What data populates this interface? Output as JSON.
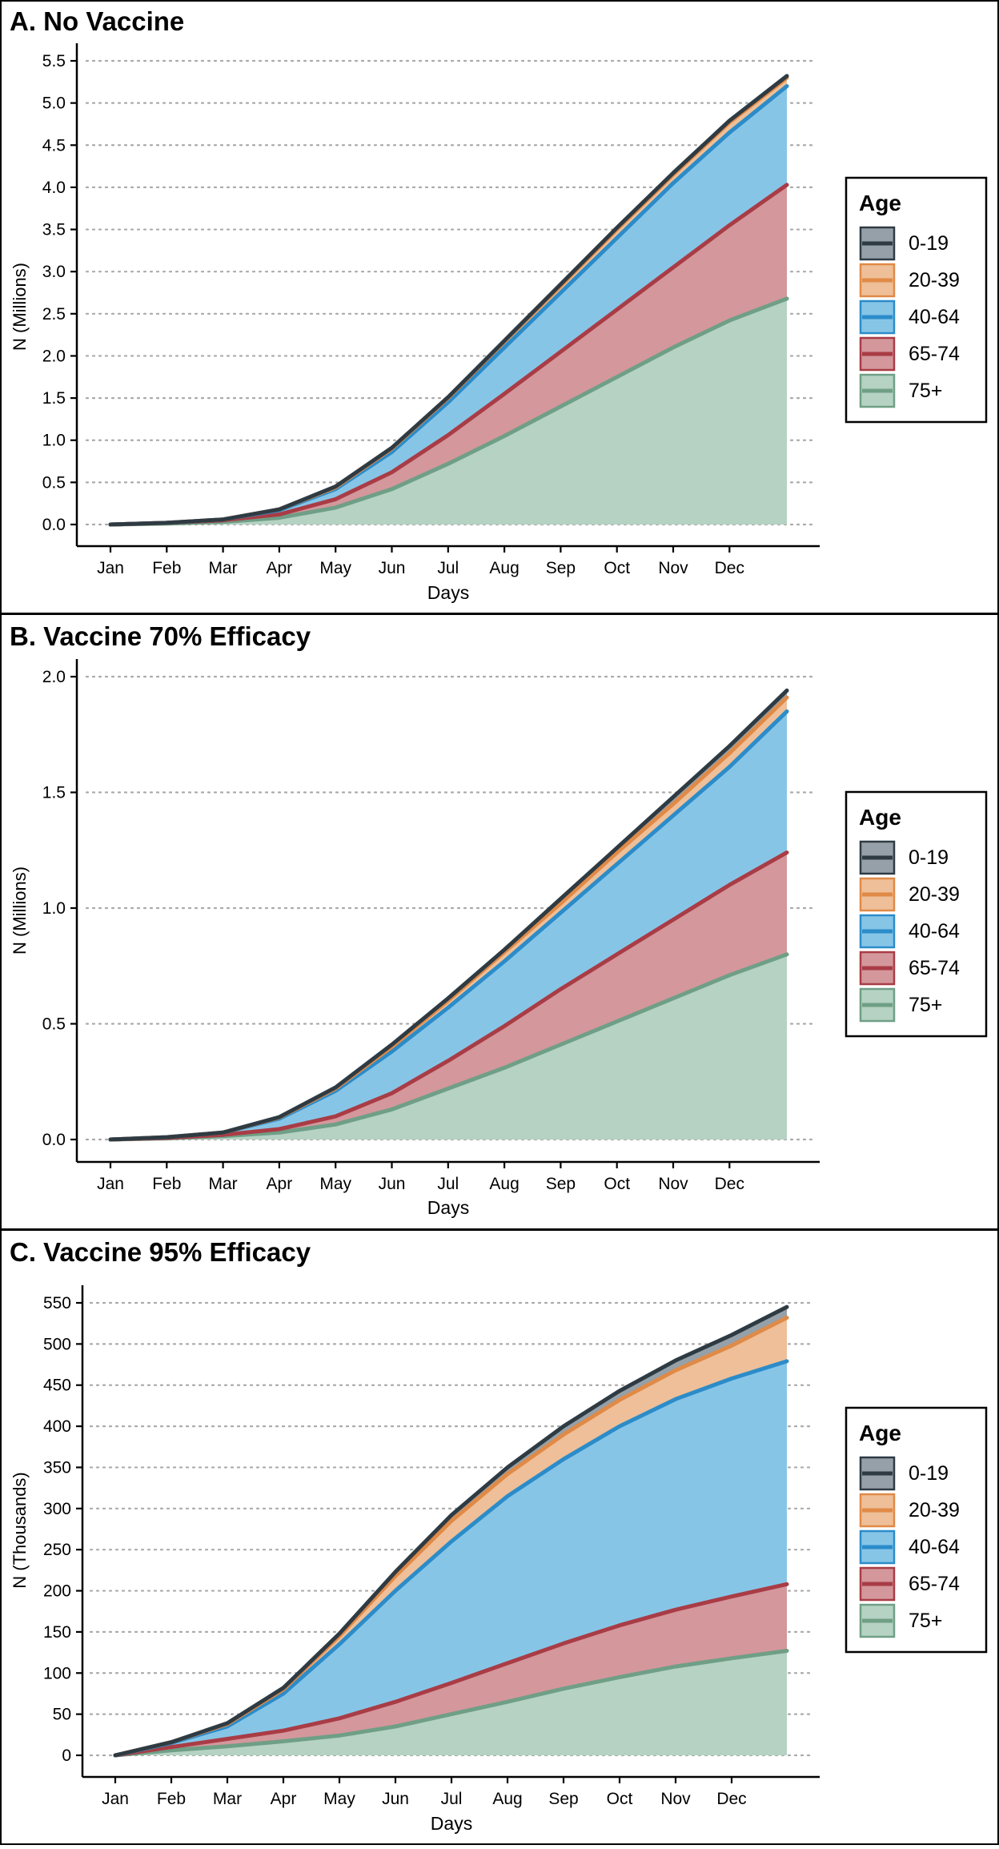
{
  "legend": {
    "title": "Age",
    "entries": [
      {
        "label": "0-19",
        "line": "#2f3b43",
        "fill": "#95a0a8"
      },
      {
        "label": "20-39",
        "line": "#e08a47",
        "fill": "#eebf98"
      },
      {
        "label": "40-64",
        "line": "#2b8cc9",
        "fill": "#87c5e7"
      },
      {
        "label": "65-74",
        "line": "#a93c45",
        "fill": "#d3979c"
      },
      {
        "label": "75+",
        "line": "#6f9f86",
        "fill": "#b5d2c3"
      }
    ]
  },
  "chart_data": [
    {
      "type": "area",
      "title": "A. No Vaccine",
      "xlabel": "Days",
      "ylabel": "N (Millions)",
      "grid": "horizontal dotted",
      "legend_position": "right",
      "x_tick_labels": [
        "Jan",
        "Feb",
        "Mar",
        "Apr",
        "May",
        "Jun",
        "Jul",
        "Aug",
        "Sep",
        "Oct",
        "Nov",
        "Dec"
      ],
      "y_ticks": [
        "0.0",
        "0.5",
        "1.0",
        "1.5",
        "2.0",
        "2.5",
        "3.0",
        "3.5",
        "4.0",
        "4.5",
        "5.0",
        "5.5"
      ],
      "ylim": [
        0,
        5.5
      ],
      "x": [
        "Jan",
        "Feb",
        "Mar",
        "Apr",
        "May",
        "Jun",
        "Jul",
        "Aug",
        "Sep",
        "Oct",
        "Nov",
        "Dec",
        "end"
      ],
      "series": [
        {
          "name": "75+",
          "values": [
            0,
            0.01,
            0.03,
            0.08,
            0.2,
            0.42,
            0.72,
            1.05,
            1.4,
            1.75,
            2.1,
            2.42,
            2.68
          ]
        },
        {
          "name": "65-74",
          "values": [
            0,
            0.02,
            0.05,
            0.12,
            0.3,
            0.62,
            1.06,
            1.55,
            2.05,
            2.55,
            3.05,
            3.55,
            4.03
          ]
        },
        {
          "name": "40-64",
          "values": [
            0,
            0.02,
            0.06,
            0.17,
            0.42,
            0.86,
            1.45,
            2.1,
            2.75,
            3.4,
            4.05,
            4.65,
            5.2
          ]
        },
        {
          "name": "20-39",
          "values": [
            0,
            0.02,
            0.06,
            0.18,
            0.44,
            0.9,
            1.5,
            2.17,
            2.83,
            3.5,
            4.15,
            4.77,
            5.3
          ]
        },
        {
          "name": "0-19",
          "values": [
            0,
            0.02,
            0.06,
            0.18,
            0.45,
            0.91,
            1.51,
            2.18,
            2.85,
            3.52,
            4.17,
            4.79,
            5.32
          ]
        }
      ]
    },
    {
      "type": "area",
      "title": "B. Vaccine 70% Efficacy",
      "xlabel": "Days",
      "ylabel": "N (Millions)",
      "grid": "horizontal dotted",
      "legend_position": "right",
      "x_tick_labels": [
        "Jan",
        "Feb",
        "Mar",
        "Apr",
        "May",
        "Jun",
        "Jul",
        "Aug",
        "Sep",
        "Oct",
        "Nov",
        "Dec"
      ],
      "y_ticks": [
        "0.0",
        "0.5",
        "1.0",
        "1.5",
        "2.0"
      ],
      "ylim": [
        0,
        2.0
      ],
      "x": [
        "Jan",
        "Feb",
        "Mar",
        "Apr",
        "May",
        "Jun",
        "Jul",
        "Aug",
        "Sep",
        "Oct",
        "Nov",
        "Dec",
        "end"
      ],
      "series": [
        {
          "name": "75+",
          "values": [
            0,
            0.005,
            0.015,
            0.03,
            0.065,
            0.13,
            0.22,
            0.31,
            0.41,
            0.51,
            0.61,
            0.71,
            0.8
          ]
        },
        {
          "name": "65-74",
          "values": [
            0,
            0.007,
            0.02,
            0.045,
            0.1,
            0.2,
            0.34,
            0.49,
            0.65,
            0.8,
            0.95,
            1.1,
            1.24
          ]
        },
        {
          "name": "40-64",
          "values": [
            0,
            0.01,
            0.03,
            0.09,
            0.21,
            0.38,
            0.57,
            0.77,
            0.98,
            1.19,
            1.4,
            1.61,
            1.85
          ]
        },
        {
          "name": "20-39",
          "values": [
            0,
            0.01,
            0.03,
            0.095,
            0.22,
            0.4,
            0.6,
            0.81,
            1.02,
            1.24,
            1.45,
            1.67,
            1.91
          ]
        },
        {
          "name": "0-19",
          "values": [
            0,
            0.01,
            0.03,
            0.097,
            0.225,
            0.41,
            0.61,
            0.82,
            1.04,
            1.26,
            1.48,
            1.7,
            1.94
          ]
        }
      ]
    },
    {
      "type": "area",
      "title": "C. Vaccine 95% Efficacy",
      "xlabel": "Days",
      "ylabel": "N (Thousands)",
      "grid": "horizontal dotted",
      "legend_position": "right",
      "x_tick_labels": [
        "Jan",
        "Feb",
        "Mar",
        "Apr",
        "May",
        "Jun",
        "Jul",
        "Aug",
        "Sep",
        "Oct",
        "Nov",
        "Dec"
      ],
      "y_ticks": [
        "0",
        "50",
        "100",
        "150",
        "200",
        "250",
        "300",
        "350",
        "400",
        "450",
        "500",
        "550"
      ],
      "ylim": [
        0,
        550
      ],
      "x": [
        "Jan",
        "Feb",
        "Mar",
        "Apr",
        "May",
        "Jun",
        "Jul",
        "Aug",
        "Sep",
        "Oct",
        "Nov",
        "Dec",
        "end"
      ],
      "series": [
        {
          "name": "75+",
          "values": [
            0,
            6,
            11,
            17,
            24,
            35,
            50,
            65,
            81,
            95,
            108,
            118,
            127
          ]
        },
        {
          "name": "65-74",
          "values": [
            0,
            10,
            20,
            30,
            45,
            65,
            88,
            112,
            136,
            158,
            177,
            193,
            208
          ]
        },
        {
          "name": "40-64",
          "values": [
            0,
            15,
            35,
            75,
            135,
            200,
            260,
            315,
            360,
            400,
            433,
            458,
            479
          ]
        },
        {
          "name": "20-39",
          "values": [
            0,
            16,
            38,
            80,
            145,
            218,
            285,
            342,
            390,
            432,
            468,
            498,
            532
          ]
        },
        {
          "name": "0-19",
          "values": [
            0,
            16,
            39,
            82,
            148,
            223,
            292,
            350,
            400,
            443,
            480,
            511,
            545
          ]
        }
      ]
    }
  ]
}
